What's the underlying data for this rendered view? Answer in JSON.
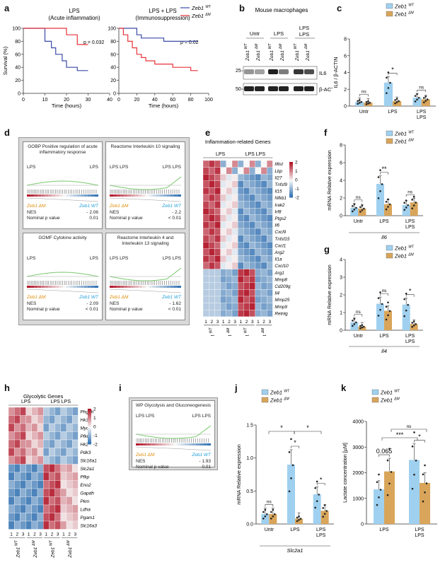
{
  "panels": {
    "a": {
      "letter": "a",
      "titles": [
        "LPS\n(Acute inflammation)",
        "LPS + LPS\n(Immunosuppression)"
      ],
      "ylabel": "Survival (%)",
      "xlabel": "Time (hours)",
      "pvalues": [
        "p = 0.032",
        "p = 0.02"
      ],
      "legend": [
        "Zeb1 WT",
        "Zeb1 ΔM"
      ],
      "yticks": [
        "0",
        "20",
        "40",
        "60",
        "80",
        "100"
      ],
      "xticks1": [
        "0",
        "10",
        "20",
        "30",
        "40"
      ],
      "xticks2": [
        "0",
        "20",
        "40",
        "60",
        "80",
        "100"
      ]
    },
    "b": {
      "letter": "b",
      "title": "Mouse macrophages",
      "groups": [
        "Untr",
        "LPS",
        "LPS\nLPS"
      ],
      "genotypes": [
        "Zeb1 WT",
        "Zeb1 ΔM",
        "Zeb1 WT",
        "Zeb1 ΔM",
        "Zeb1 WT",
        "Zeb1 ΔM"
      ],
      "mw": [
        "25",
        "50"
      ],
      "bands": [
        "IL6",
        "β-ACTIN"
      ]
    },
    "c": {
      "letter": "c",
      "ylabel": "IL6 / β-ACTIN",
      "yticks": [
        "0",
        "2",
        "4",
        "6",
        "8"
      ],
      "categories": [
        "Untr",
        "LPS",
        "LPS\nLPS"
      ],
      "sig": [
        "ns",
        "*",
        "ns"
      ],
      "legend": [
        "Zeb1 WT",
        "Zeb1 ΔM"
      ]
    },
    "d": {
      "letter": "d",
      "cells": [
        {
          "title": "GOBP Positive regulation of acute inflammatory response",
          "left": "LPS",
          "right": "LPS",
          "nes": "- 2.06",
          "p": "0.01"
        },
        {
          "title": "Reactome Interleukin 10 signaling",
          "left": "LPS LPS",
          "right": "LPS LPS",
          "nes": "- 2.2",
          "p": "< 0.01"
        },
        {
          "title": "GOMF Cytokine activity",
          "left": "LPS",
          "right": "LPS",
          "nes": "- 2.09",
          "p": "< 0.01"
        },
        {
          "title": "Reactome Interleukin 4 and Interleukin 13 signaling",
          "left": "LPS LPS",
          "right": "LPS LPS",
          "nes": "- 1.62",
          "p": "< 0.01"
        }
      ],
      "nes_label": "NES",
      "p_label": "Nominal p value",
      "dm": "Zeb1 ΔM",
      "wt": "Zeb1 WT"
    },
    "e": {
      "letter": "e",
      "title": "Inflammation-related Genes",
      "groups": [
        "LPS",
        "LPS LPS"
      ],
      "genes": [
        "Il6st",
        "Lbp",
        "Il27",
        "Tnfsf9",
        "Il15",
        "Nfkb1",
        "Irak2",
        "Irf8",
        "Ptgs2",
        "Il6",
        "Cxcl9",
        "Tnfsf15",
        "Cxcl1",
        "Arg2",
        "Il1a",
        "Cxcl10",
        "Arg1",
        "Mmp8",
        "Cd209g",
        "Il4",
        "Mmp25",
        "Mmp9",
        "Retnlg"
      ],
      "colnums": [
        "1",
        "2",
        "3",
        "1",
        "2",
        "3",
        "1",
        "2",
        "3",
        "1",
        "2",
        "3"
      ],
      "genotypes": [
        "Zeb1 WT",
        "Zeb1 ΔM",
        "Zeb1 WT",
        "Zeb1 ΔM"
      ],
      "scale": [
        "2",
        "1",
        "0",
        "-1",
        "-2"
      ]
    },
    "f": {
      "letter": "f",
      "ylabel": "mRNA Relative expression",
      "yticks": [
        "0",
        "2",
        "4",
        "6",
        "8"
      ],
      "categories": [
        "Untr",
        "LPS",
        "LPS\nLPS"
      ],
      "sig": [
        "ns",
        "**",
        "ns"
      ],
      "gene": "Il6",
      "legend": [
        "Zeb1 WT",
        "Zeb1 ΔM"
      ]
    },
    "g": {
      "letter": "g",
      "ylabel": "mRNA Relative expression",
      "yticks": [
        "0",
        "1",
        "2",
        "3",
        "4"
      ],
      "categories": [
        "Untr",
        "LPS",
        "LPS\nLPS"
      ],
      "sig": [
        "ns",
        "ns",
        "*"
      ],
      "gene": "Il4",
      "legend": [
        "Zeb1 WT",
        "Zeb1 ΔM"
      ]
    },
    "h": {
      "letter": "h",
      "title": "Glycolytic Genes",
      "groups": [
        "LPS",
        "LPS LPS"
      ],
      "genes": [
        "Phgdh",
        "Hk3",
        "Myc",
        "Pfkm",
        "Hk2",
        "Pdk3",
        "Slc16a1",
        "Slc2a1",
        "Pfkp",
        "Eno2",
        "Gapdh",
        "Pkm",
        "Ldha",
        "Pgam1",
        "Slc16a3"
      ],
      "colnums": [
        "1",
        "2",
        "3",
        "1",
        "2",
        "3",
        "1",
        "2",
        "3",
        "1",
        "2",
        "3"
      ],
      "genotypes": [
        "Zeb1 WT",
        "Zeb1 ΔM",
        "Zeb1 WT",
        "Zeb1 ΔM"
      ],
      "scale": [
        "2",
        "1",
        "0",
        "-1",
        "-2"
      ]
    },
    "i": {
      "letter": "i",
      "title": "WP Glycolysis and Gluconeogenesis",
      "left": "LPS LPS",
      "right": "LPS LPS",
      "dm": "Zeb1 ΔM",
      "wt": "Zeb1 WT",
      "nes_label": "NES",
      "nes": "- 1.93",
      "p_label": "Nominal p value",
      "p": "0.01"
    },
    "j": {
      "letter": "j",
      "ylabel": "mRNA Relative expression",
      "yticks": [
        "0.0",
        "0.5",
        "1.0",
        "1.5"
      ],
      "categories": [
        "Untr",
        "LPS",
        "LPS\nLPS"
      ],
      "sig_inner": [
        "ns",
        "*",
        "*"
      ],
      "sig_outer": [
        "*",
        "*"
      ],
      "gene": "Slc2a1",
      "legend": [
        "Zeb1 WT",
        "Zeb1 ΔM"
      ]
    },
    "k": {
      "letter": "k",
      "ylabel": "Lactate concentration [µM]",
      "yticks": [
        "0",
        "1000",
        "2000",
        "3000",
        "4000"
      ],
      "categories": [
        "LPS",
        "LPS\nLPS"
      ],
      "sig": [
        "0.065",
        "*",
        "***",
        "ns"
      ],
      "legend": [
        "Zeb1 WT",
        "Zeb1 ΔM"
      ]
    }
  },
  "chart_data": [
    {
      "type": "line",
      "panel": "a-left",
      "title": "LPS (Acute inflammation)",
      "xlabel": "Time (hours)",
      "ylabel": "Survival (%)",
      "xlim": [
        0,
        40
      ],
      "ylim": [
        0,
        100
      ],
      "series": [
        {
          "name": "Zeb1 WT",
          "x": [
            0,
            5,
            10,
            13,
            15,
            18,
            20,
            23,
            25,
            30
          ],
          "y": [
            100,
            100,
            80,
            70,
            60,
            50,
            40,
            40,
            35,
            35
          ]
        },
        {
          "name": "Zeb1 ΔM",
          "x": [
            0,
            10,
            20,
            25,
            30
          ],
          "y": [
            100,
            100,
            90,
            75,
            75
          ]
        }
      ],
      "annotation": "p = 0.032"
    },
    {
      "type": "line",
      "panel": "a-right",
      "title": "LPS + LPS (Immunosuppression)",
      "xlabel": "Time (hours)",
      "ylabel": "Survival (%)",
      "xlim": [
        0,
        100
      ],
      "ylim": [
        0,
        100
      ],
      "series": [
        {
          "name": "Zeb1 WT",
          "x": [
            0,
            10,
            20,
            25,
            50,
            60,
            88
          ],
          "y": [
            100,
            100,
            90,
            85,
            80,
            80,
            80
          ]
        },
        {
          "name": "Zeb1 ΔM",
          "x": [
            0,
            5,
            10,
            15,
            20,
            25,
            30,
            40,
            50,
            60,
            70,
            80,
            88
          ],
          "y": [
            100,
            90,
            80,
            70,
            60,
            55,
            50,
            45,
            45,
            40,
            40,
            35,
            35
          ]
        }
      ],
      "annotation": "p = 0.02"
    },
    {
      "type": "bar",
      "panel": "c",
      "ylabel": "IL6 / β-ACTIN",
      "ylim": [
        0,
        8
      ],
      "categories": [
        "Untr",
        "LPS",
        "LPS LPS"
      ],
      "series": [
        {
          "name": "Zeb1 WT",
          "values": [
            0.5,
            2.8,
            1.0
          ]
        },
        {
          "name": "Zeb1 ΔM",
          "values": [
            0.4,
            0.6,
            0.8
          ]
        }
      ]
    },
    {
      "type": "heatmap",
      "panel": "e",
      "title": "Inflammation-related Genes"
    },
    {
      "type": "bar",
      "panel": "f",
      "ylabel": "mRNA Relative expression",
      "ylim": [
        0,
        8
      ],
      "categories": [
        "Untr",
        "LPS",
        "LPS LPS"
      ],
      "series": [
        {
          "name": "Zeb1 WT",
          "values": [
            0.9,
            3.6,
            1.2
          ]
        },
        {
          "name": "Zeb1 ΔM",
          "values": [
            0.8,
            1.3,
            1.5
          ]
        }
      ]
    },
    {
      "type": "bar",
      "panel": "g",
      "ylabel": "mRNA Relative expression",
      "ylim": [
        0,
        4
      ],
      "categories": [
        "Untr",
        "LPS",
        "LPS LPS"
      ],
      "series": [
        {
          "name": "Zeb1 WT",
          "values": [
            0.45,
            1.5,
            1.45
          ]
        },
        {
          "name": "Zeb1 ΔM",
          "values": [
            0.2,
            1.1,
            0.35
          ]
        }
      ]
    },
    {
      "type": "heatmap",
      "panel": "h",
      "title": "Glycolytic Genes"
    },
    {
      "type": "bar",
      "panel": "j",
      "ylabel": "mRNA Relative expression",
      "ylim": [
        0,
        1.5
      ],
      "categories": [
        "Untr",
        "LPS",
        "LPS LPS"
      ],
      "series": [
        {
          "name": "Zeb1 WT",
          "values": [
            0.15,
            0.9,
            0.45
          ]
        },
        {
          "name": "Zeb1 ΔM",
          "values": [
            0.15,
            0.08,
            0.2
          ]
        }
      ]
    },
    {
      "type": "bar",
      "panel": "k",
      "ylabel": "Lactate concentration [µM]",
      "ylim": [
        0,
        4000
      ],
      "categories": [
        "LPS",
        "LPS LPS"
      ],
      "series": [
        {
          "name": "Zeb1 WT",
          "values": [
            1350,
            2500
          ]
        },
        {
          "name": "Zeb1 ΔM",
          "values": [
            2050,
            1600
          ]
        }
      ]
    }
  ],
  "colors": {
    "wt": "#9fd0ef",
    "dm": "#d9a55a",
    "red": "#e8333a",
    "blue": "#3a4aa6",
    "heat_hi": "#b2182b",
    "heat_lo": "#2166ac"
  }
}
